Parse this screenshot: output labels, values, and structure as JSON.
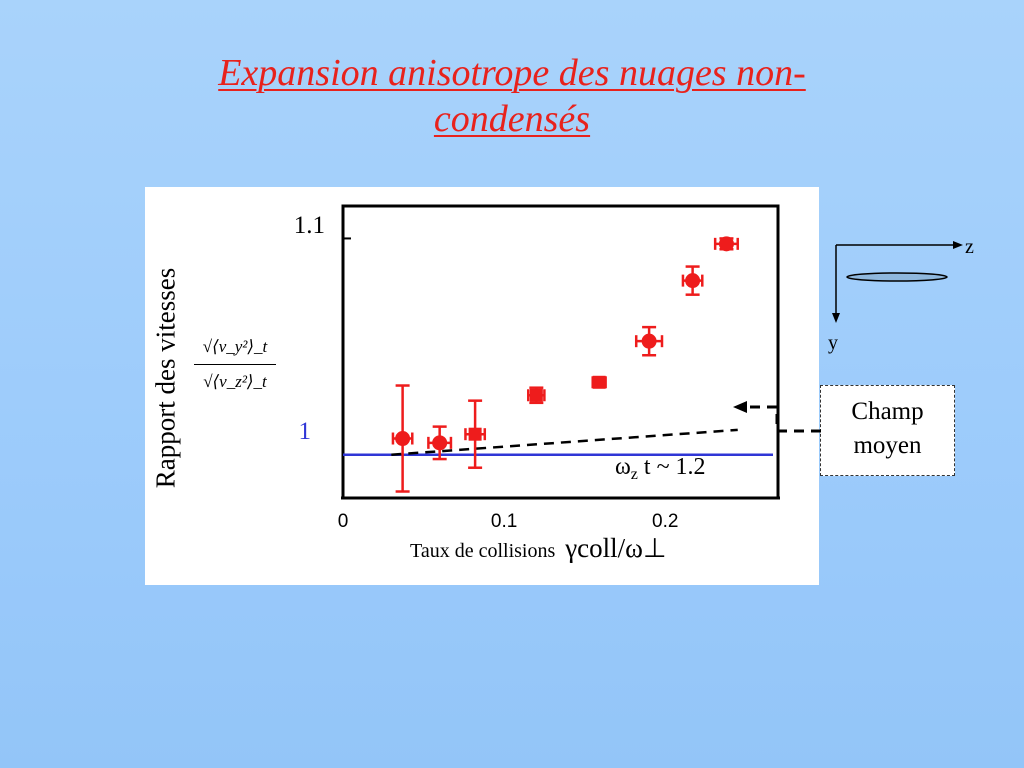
{
  "slide": {
    "title_line1": "Expansion anisotrope des nuages non-",
    "title_line2": "condensés"
  },
  "chart_data": {
    "type": "scatter",
    "ylabel": "Rapport des vitesses",
    "ylabel_formula": {
      "numerator": "√⟨v_y²⟩_t",
      "denominator": "√⟨v_z²⟩_t"
    },
    "xlabel_text": "Taux de collisions",
    "xlabel_symbol": "γcoll/ω⊥",
    "x_ticks": [
      "0",
      "0.1",
      "0.2"
    ],
    "y_ticks": [
      "1.1",
      "1"
    ],
    "xlim": [
      0,
      0.27
    ],
    "ylim": [
      0.98,
      1.115
    ],
    "grid": false,
    "annotation": "ωz t ~ 1.2",
    "reference_line": {
      "y": 1.0,
      "color": "#2f36d6"
    },
    "mean_field_line": {
      "x": [
        0.03,
        0.245
      ],
      "y": [
        1.0,
        1.0115
      ],
      "style": "dashed"
    },
    "series": [
      {
        "color": "#ee1c1c",
        "points": [
          {
            "x": 0.037,
            "y": 1.0075,
            "yerr": 0.0245,
            "xerr": 0.006,
            "marker": "circle"
          },
          {
            "x": 0.06,
            "y": 1.0055,
            "yerr": 0.0075,
            "xerr": 0.007,
            "marker": "circle"
          },
          {
            "x": 0.082,
            "y": 1.0095,
            "yerr": 0.0155,
            "xerr": 0.006,
            "marker": "square"
          },
          {
            "x": 0.12,
            "y": 1.0275,
            "yerr": 0.0035,
            "xerr": 0.005,
            "marker": "square"
          },
          {
            "x": 0.159,
            "y": 1.0335,
            "yerr": 0.0015,
            "xerr": 0.004,
            "marker": "square"
          },
          {
            "x": 0.19,
            "y": 1.0525,
            "yerr": 0.0065,
            "xerr": 0.008,
            "marker": "circle"
          },
          {
            "x": 0.217,
            "y": 1.0805,
            "yerr": 0.0065,
            "xerr": 0.006,
            "marker": "circle"
          },
          {
            "x": 0.238,
            "y": 1.0975,
            "yerr": 0.0025,
            "xerr": 0.007,
            "marker": "circle"
          }
        ]
      }
    ]
  },
  "champ_box": {
    "line1": "Champ",
    "line2": "moyen"
  },
  "coords": {
    "z_label": "z",
    "y_label": "y"
  }
}
